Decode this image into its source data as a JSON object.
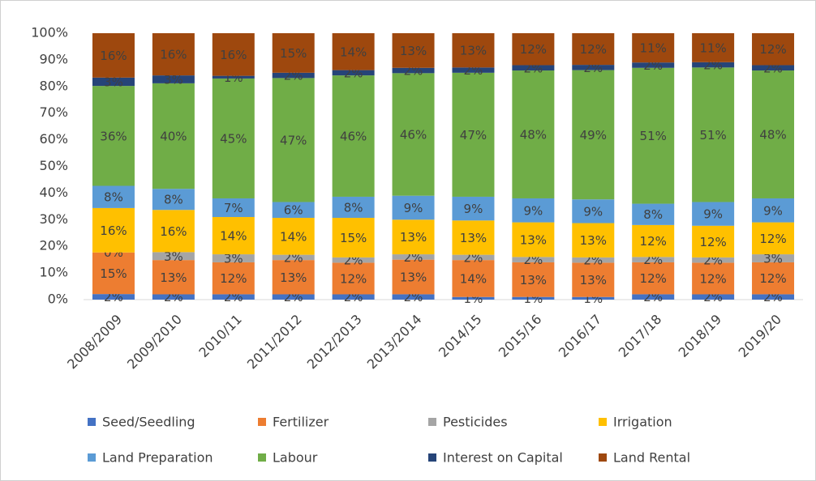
{
  "chart_data": {
    "type": "stacked100",
    "categories": [
      "2008/2009",
      "2009/2010",
      "2010/11",
      "2011/2012",
      "2012/2013",
      "2013/2014",
      "2014/15",
      "2015/16",
      "2016/17",
      "2017/18",
      "2018/19",
      "2019/20"
    ],
    "series": [
      {
        "name": "Seed/Seedling",
        "color": "#4472c4",
        "values": [
          2,
          2,
          2,
          2,
          2,
          2,
          1,
          1,
          1,
          2,
          2,
          2
        ],
        "value_labels": [
          "2%",
          "2%",
          "2%",
          "2%",
          "2%",
          "2%",
          "1%",
          "1%",
          "1%",
          "2%",
          "2%",
          "2%"
        ]
      },
      {
        "name": "Fertilizer",
        "color": "#ed7d31",
        "values": [
          15,
          13,
          12,
          13,
          12,
          13,
          14,
          13,
          13,
          12,
          12,
          12
        ],
        "value_labels": [
          "15%",
          "13%",
          "12%",
          "13%",
          "12%",
          "13%",
          "14%",
          "13%",
          "13%",
          "12%",
          "12%",
          "12%"
        ]
      },
      {
        "name": "Pesticides",
        "color": "#a5a5a5",
        "values": [
          0,
          3,
          3,
          2,
          2,
          2,
          2,
          2,
          2,
          2,
          2,
          3
        ],
        "value_labels": [
          "0%",
          "3%",
          "3%",
          "2%",
          "2%",
          "2%",
          "2%",
          "2%",
          "2%",
          "2%",
          "2%",
          "3%"
        ]
      },
      {
        "name": "Irrigation",
        "color": "#ffc000",
        "values": [
          16,
          16,
          14,
          14,
          15,
          13,
          13,
          13,
          13,
          12,
          12,
          12
        ],
        "value_labels": [
          "16%",
          "16%",
          "14%",
          "14%",
          "15%",
          "13%",
          "13%",
          "13%",
          "13%",
          "12%",
          "12%",
          "12%"
        ]
      },
      {
        "name": "Land Preparation",
        "color": "#5b9bd5",
        "values": [
          8,
          8,
          7,
          6,
          8,
          9,
          9,
          9,
          9,
          8,
          9,
          9
        ],
        "value_labels": [
          "8%",
          "8%",
          "7%",
          "6%",
          "8%",
          "9%",
          "9%",
          "9%",
          "9%",
          "8%",
          "9%",
          "9%"
        ]
      },
      {
        "name": "Labour",
        "color": "#70ad47",
        "values": [
          36,
          40,
          45,
          47,
          46,
          46,
          47,
          48,
          49,
          51,
          51,
          48
        ],
        "value_labels": [
          "36%",
          "40%",
          "45%",
          "47%",
          "46%",
          "46%",
          "47%",
          "48%",
          "49%",
          "51%",
          "51%",
          "48%"
        ]
      },
      {
        "name": "Interest on Capital",
        "color": "#264478",
        "values": [
          3,
          3,
          1,
          2,
          2,
          2,
          2,
          2,
          2,
          2,
          2,
          2
        ],
        "value_labels": [
          "3%",
          "3%",
          "1%",
          "2%",
          "2%",
          "2%",
          "2%",
          "2%",
          "2%",
          "2%",
          "2%",
          "2%"
        ]
      },
      {
        "name": "Land Rental",
        "color": "#9e480e",
        "values": [
          16,
          16,
          16,
          15,
          14,
          13,
          13,
          12,
          12,
          11,
          11,
          12
        ],
        "value_labels": [
          "16%",
          "16%",
          "16%",
          "15%",
          "14%",
          "13%",
          "13%",
          "12%",
          "12%",
          "11%",
          "11%",
          "12%"
        ]
      }
    ],
    "ylim": [
      0,
      100
    ],
    "yticks": [
      {
        "value": 0,
        "label": "0%"
      },
      {
        "value": 10,
        "label": "10%"
      },
      {
        "value": 20,
        "label": "20%"
      },
      {
        "value": 30,
        "label": "30%"
      },
      {
        "value": 40,
        "label": "40%"
      },
      {
        "value": 50,
        "label": "50%"
      },
      {
        "value": 60,
        "label": "60%"
      },
      {
        "value": 70,
        "label": "70%"
      },
      {
        "value": 80,
        "label": "80%"
      },
      {
        "value": 90,
        "label": "90%"
      },
      {
        "value": 100,
        "label": "100%"
      }
    ],
    "grid": false
  }
}
